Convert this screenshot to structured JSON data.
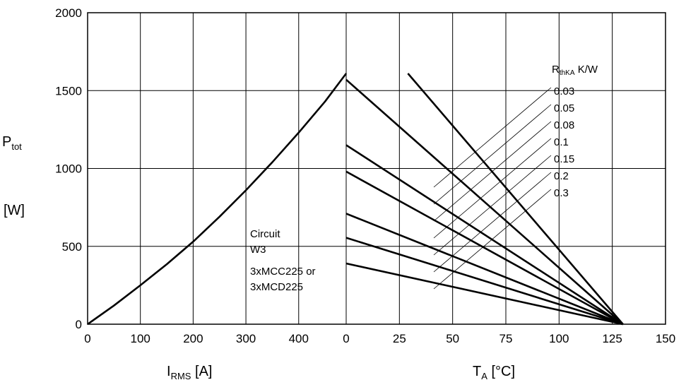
{
  "chart_data": [
    {
      "type": "line",
      "panel": "left",
      "title": "",
      "xlabel_main": "I",
      "xlabel_sub": "RMS",
      "xlabel_unit": "[A]",
      "ylabel_main": "P",
      "ylabel_sub": "tot",
      "ylabel_unit": "[W]",
      "xlim": [
        0,
        490
      ],
      "ylim": [
        0,
        2000
      ],
      "x_ticks": [
        0,
        100,
        200,
        300,
        400
      ],
      "y_ticks": [
        0,
        500,
        1000,
        1500,
        2000
      ],
      "grid": true,
      "annotation": [
        "Circuit",
        "W3",
        "3xMCC225 or",
        "3xMCD225"
      ],
      "series": [
        {
          "x": [
            0,
            50,
            100,
            150,
            200,
            250,
            300,
            350,
            400,
            450,
            490
          ],
          "y": [
            0,
            120,
            250,
            385,
            530,
            690,
            860,
            1040,
            1230,
            1430,
            1610
          ]
        }
      ]
    },
    {
      "type": "line",
      "panel": "right",
      "title": "",
      "xlabel_main": "T",
      "xlabel_sub": "A",
      "xlabel_unit": "[°C]",
      "xlim": [
        0,
        150
      ],
      "ylim": [
        0,
        2000
      ],
      "x_ticks": [
        0,
        25,
        50,
        75,
        100,
        125,
        150
      ],
      "grid": true,
      "legend_title_main": "R",
      "legend_title_sub": "thKA",
      "legend_title_unit": "K/W",
      "series": [
        {
          "name": "0.03",
          "x": [
            29,
            130
          ],
          "y": [
            1610,
            0
          ]
        },
        {
          "name": "0.05",
          "x": [
            0,
            130
          ],
          "y": [
            1570,
            0
          ]
        },
        {
          "name": "0.08",
          "x": [
            0,
            130
          ],
          "y": [
            1150,
            0
          ]
        },
        {
          "name": "0.1",
          "x": [
            0,
            130
          ],
          "y": [
            980,
            0
          ]
        },
        {
          "name": "0.15",
          "x": [
            0,
            130
          ],
          "y": [
            710,
            0
          ]
        },
        {
          "name": "0.2",
          "x": [
            0,
            130
          ],
          "y": [
            555,
            0
          ]
        },
        {
          "name": "0.3",
          "x": [
            0,
            130
          ],
          "y": [
            390,
            0
          ]
        }
      ]
    }
  ]
}
